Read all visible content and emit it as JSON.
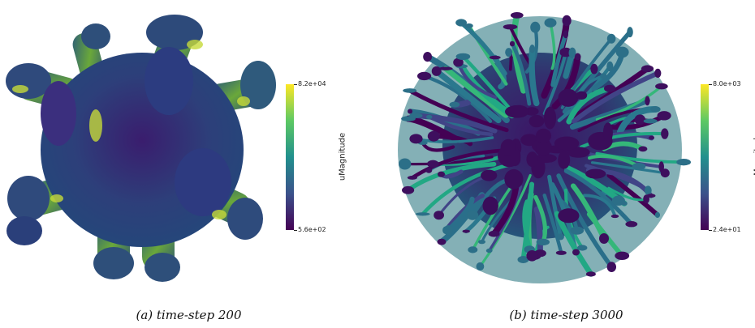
{
  "panels": [
    {
      "caption": "(a) time-step 200",
      "colorbar": {
        "title": "uMagnitude",
        "max_label": "8.2e+04",
        "min_label": "5.6e+02"
      }
    },
    {
      "caption": "(b) time-step 3000",
      "colorbar": {
        "title": "uMagnitude",
        "max_label": "8.0e+03",
        "min_label": "2.4e+01"
      }
    }
  ],
  "colormap": {
    "name": "viridis",
    "stops": [
      "#440154",
      "#3b528b",
      "#21908d",
      "#5dc963",
      "#fde725"
    ]
  }
}
